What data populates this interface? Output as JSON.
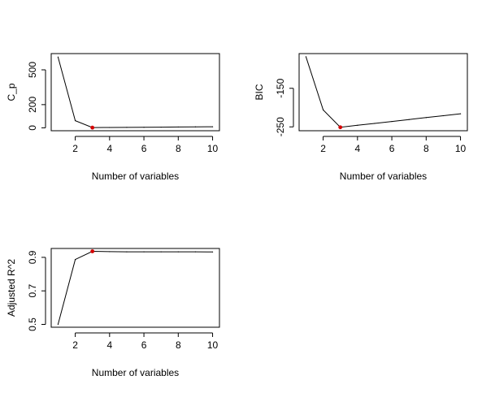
{
  "chart_data": [
    {
      "type": "line",
      "xlabel": "Number of variables",
      "ylabel": "C_p",
      "xlim": [
        0.6,
        10.4
      ],
      "ylim": [
        -25,
        640
      ],
      "xticks": [
        2,
        4,
        6,
        8,
        10
      ],
      "xtick_labels": [
        "2",
        "4",
        "6",
        "8",
        "10"
      ],
      "yticks": [
        0,
        200,
        500
      ],
      "ytick_labels": [
        "0",
        "200",
        "500"
      ],
      "x": [
        1,
        2,
        3,
        4,
        5,
        6,
        7,
        8,
        9,
        10
      ],
      "series": [
        {
          "values": [
            610,
            62,
            2,
            3,
            4,
            5,
            6,
            7,
            8,
            9
          ],
          "color": "#000000"
        }
      ],
      "highlight": {
        "x": 3,
        "y": 2,
        "color": "#d40000"
      }
    },
    {
      "type": "line",
      "xlabel": "Number of variables",
      "ylabel": "BIC",
      "xlim": [
        0.6,
        10.4
      ],
      "ylim": [
        -260,
        -60
      ],
      "xticks": [
        2,
        4,
        6,
        8,
        10
      ],
      "xtick_labels": [
        "2",
        "4",
        "6",
        "8",
        "10"
      ],
      "yticks": [
        -250,
        -150
      ],
      "ytick_labels": [
        "-250",
        "-150"
      ],
      "x": [
        1,
        2,
        3,
        4,
        5,
        6,
        7,
        8,
        9,
        10
      ],
      "series": [
        {
          "values": [
            -68,
            -206,
            -251,
            -246,
            -241,
            -236,
            -231,
            -226,
            -221,
            -216
          ],
          "color": "#000000"
        }
      ],
      "highlight": {
        "x": 3,
        "y": -251,
        "color": "#d40000"
      }
    },
    {
      "type": "line",
      "xlabel": "Number of variables",
      "ylabel": "Adjusted R^2",
      "xlim": [
        0.6,
        10.4
      ],
      "ylim": [
        0.483,
        0.953
      ],
      "xticks": [
        2,
        4,
        6,
        8,
        10
      ],
      "xtick_labels": [
        "2",
        "4",
        "6",
        "8",
        "10"
      ],
      "yticks": [
        0.5,
        0.7,
        0.9
      ],
      "ytick_labels": [
        "0.5",
        "0.7",
        "0.9"
      ],
      "x": [
        1,
        2,
        3,
        4,
        5,
        6,
        7,
        8,
        9,
        10
      ],
      "series": [
        {
          "values": [
            0.5,
            0.887,
            0.936,
            0.934,
            0.933,
            0.933,
            0.933,
            0.933,
            0.933,
            0.932
          ],
          "color": "#000000"
        }
      ],
      "highlight": {
        "x": 3,
        "y": 0.936,
        "color": "#d40000"
      }
    }
  ]
}
